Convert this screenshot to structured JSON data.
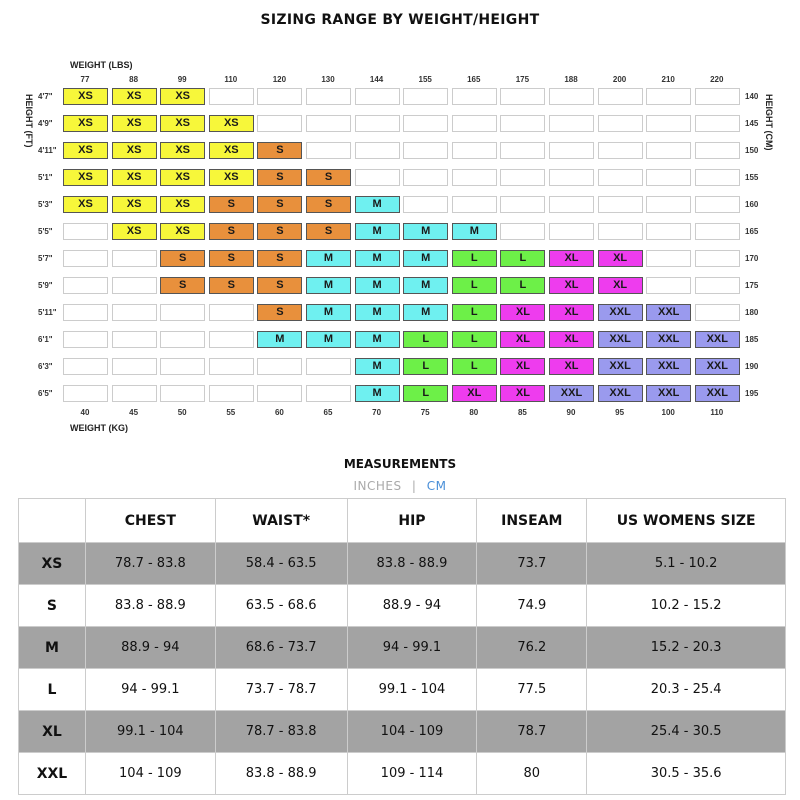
{
  "title": "SIZING RANGE BY WEIGHT/HEIGHT",
  "chart": {
    "weight_lbs_label": "WEIGHT (LBS)",
    "weight_kg_label": "WEIGHT (KG)",
    "height_ft_label": "HEIGHT (FT)",
    "height_cm_label": "HEIGHT (CM)",
    "lbs": [
      "77",
      "88",
      "99",
      "110",
      "120",
      "130",
      "144",
      "155",
      "165",
      "175",
      "188",
      "200",
      "210",
      "220"
    ],
    "kg": [
      "40",
      "45",
      "50",
      "55",
      "60",
      "65",
      "70",
      "75",
      "80",
      "85",
      "90",
      "95",
      "100",
      "110"
    ],
    "ft": [
      "4'7\"",
      "4'9\"",
      "4'11\"",
      "5'1\"",
      "5'3\"",
      "5'5\"",
      "5'7\"",
      "5'9\"",
      "5'11\"",
      "6'1\"",
      "6'3\"",
      "6'5\""
    ],
    "cm": [
      "140",
      "145",
      "150",
      "155",
      "160",
      "165",
      "170",
      "175",
      "180",
      "185",
      "190",
      "195"
    ],
    "colors": {
      "XS": "#f7f73a",
      "S": "#e8903c",
      "M": "#6ff0f0",
      "L": "#6df048",
      "XL": "#ee3cee",
      "XXL": "#9a9aee"
    },
    "grid": [
      [
        "XS",
        "XS",
        "XS",
        "",
        "",
        "",
        "",
        "",
        "",
        "",
        "",
        "",
        "",
        ""
      ],
      [
        "XS",
        "XS",
        "XS",
        "XS",
        "",
        "",
        "",
        "",
        "",
        "",
        "",
        "",
        "",
        ""
      ],
      [
        "XS",
        "XS",
        "XS",
        "XS",
        "S",
        "",
        "",
        "",
        "",
        "",
        "",
        "",
        "",
        ""
      ],
      [
        "XS",
        "XS",
        "XS",
        "XS",
        "S",
        "S",
        "",
        "",
        "",
        "",
        "",
        "",
        "",
        ""
      ],
      [
        "XS",
        "XS",
        "XS",
        "S",
        "S",
        "S",
        "M",
        "",
        "",
        "",
        "",
        "",
        "",
        ""
      ],
      [
        "",
        "XS",
        "XS",
        "S",
        "S",
        "S",
        "M",
        "M",
        "M",
        "",
        "",
        "",
        "",
        ""
      ],
      [
        "",
        "",
        "S",
        "S",
        "S",
        "M",
        "M",
        "M",
        "L",
        "L",
        "XL",
        "XL",
        "",
        ""
      ],
      [
        "",
        "",
        "S",
        "S",
        "S",
        "M",
        "M",
        "M",
        "L",
        "L",
        "XL",
        "XL",
        "",
        ""
      ],
      [
        "",
        "",
        "",
        "",
        "S",
        "M",
        "M",
        "M",
        "L",
        "XL",
        "XL",
        "XXL",
        "XXL",
        ""
      ],
      [
        "",
        "",
        "",
        "",
        "M",
        "M",
        "M",
        "L",
        "L",
        "XL",
        "XL",
        "XXL",
        "XXL",
        "XXL"
      ],
      [
        "",
        "",
        "",
        "",
        "",
        "",
        "M",
        "L",
        "L",
        "XL",
        "XL",
        "XXL",
        "XXL",
        "XXL"
      ],
      [
        "",
        "",
        "",
        "",
        "",
        "",
        "M",
        "L",
        "XL",
        "XL",
        "XXL",
        "XXL",
        "XXL",
        "XXL"
      ]
    ]
  },
  "measurements": {
    "title": "MEASUREMENTS",
    "unit_inches": "INCHES",
    "separator": "|",
    "unit_cm": "CM",
    "headers": [
      "",
      "CHEST",
      "WAIST*",
      "HIP",
      "INSEAM",
      "US WOMENS SIZE"
    ],
    "rows": [
      [
        "XS",
        "78.7 - 83.8",
        "58.4 - 63.5",
        "83.8 - 88.9",
        "73.7",
        "5.1 - 10.2"
      ],
      [
        "S",
        "83.8 - 88.9",
        "63.5 - 68.6",
        "88.9 - 94",
        "74.9",
        "10.2 - 15.2"
      ],
      [
        "M",
        "88.9 - 94",
        "68.6 - 73.7",
        "94 - 99.1",
        "76.2",
        "15.2 - 20.3"
      ],
      [
        "L",
        "94 - 99.1",
        "73.7 - 78.7",
        "99.1 - 104",
        "77.5",
        "20.3 - 25.4"
      ],
      [
        "XL",
        "99.1 - 104",
        "78.7 - 83.8",
        "104 - 109",
        "78.7",
        "25.4 - 30.5"
      ],
      [
        "XXL",
        "104 - 109",
        "83.8 - 88.9",
        "109 - 114",
        "80",
        "30.5 - 35.6"
      ]
    ]
  }
}
